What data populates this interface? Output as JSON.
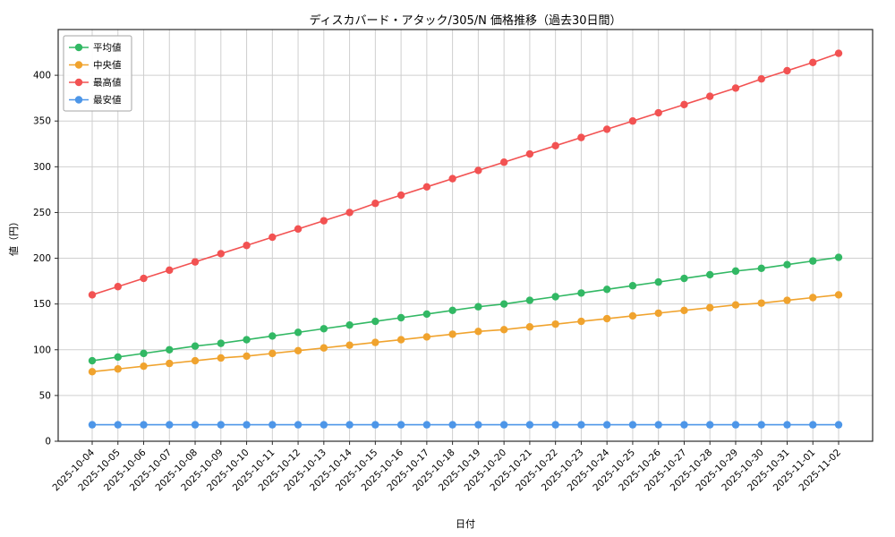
{
  "chart_data": {
    "type": "line",
    "title": "ディスカバード・アタック/305/N 価格推移（過去30日間）",
    "xlabel": "日付",
    "ylabel": "値（円）",
    "ylim": [
      0,
      450
    ],
    "yticks": [
      0,
      50,
      100,
      150,
      200,
      250,
      300,
      350,
      400
    ],
    "grid": true,
    "legend_position": "upper-left",
    "colors": {
      "grid": "#cfcfcf",
      "frame": "#2a2a2a",
      "legend_border": "#a6a6a6"
    },
    "categories": [
      "2025-10-04",
      "2025-10-05",
      "2025-10-06",
      "2025-10-07",
      "2025-10-08",
      "2025-10-09",
      "2025-10-10",
      "2025-10-11",
      "2025-10-12",
      "2025-10-13",
      "2025-10-14",
      "2025-10-15",
      "2025-10-16",
      "2025-10-17",
      "2025-10-18",
      "2025-10-19",
      "2025-10-20",
      "2025-10-21",
      "2025-10-22",
      "2025-10-23",
      "2025-10-24",
      "2025-10-25",
      "2025-10-26",
      "2025-10-27",
      "2025-10-28",
      "2025-10-29",
      "2025-10-30",
      "2025-10-31",
      "2025-11-01",
      "2025-11-02"
    ],
    "series": [
      {
        "name": "平均値",
        "color": "#32b864",
        "values": [
          88,
          92,
          96,
          100,
          104,
          107,
          111,
          115,
          119,
          123,
          127,
          131,
          135,
          139,
          143,
          147,
          150,
          154,
          158,
          162,
          166,
          170,
          174,
          178,
          182,
          186,
          189,
          193,
          197,
          201
        ]
      },
      {
        "name": "中央値",
        "color": "#f0a32e",
        "values": [
          76,
          79,
          82,
          85,
          88,
          91,
          93,
          96,
          99,
          102,
          105,
          108,
          111,
          114,
          117,
          120,
          122,
          125,
          128,
          131,
          134,
          137,
          140,
          143,
          146,
          149,
          151,
          154,
          157,
          160
        ]
      },
      {
        "name": "最高値",
        "color": "#f25252",
        "values": [
          160,
          169,
          178,
          187,
          196,
          205,
          214,
          223,
          232,
          241,
          250,
          260,
          269,
          278,
          287,
          296,
          305,
          314,
          323,
          332,
          341,
          350,
          359,
          368,
          377,
          386,
          396,
          405,
          414,
          424
        ]
      },
      {
        "name": "最安値",
        "color": "#4d96e8",
        "values": [
          18,
          18,
          18,
          18,
          18,
          18,
          18,
          18,
          18,
          18,
          18,
          18,
          18,
          18,
          18,
          18,
          18,
          18,
          18,
          18,
          18,
          18,
          18,
          18,
          18,
          18,
          18,
          18,
          18,
          18
        ]
      }
    ]
  }
}
